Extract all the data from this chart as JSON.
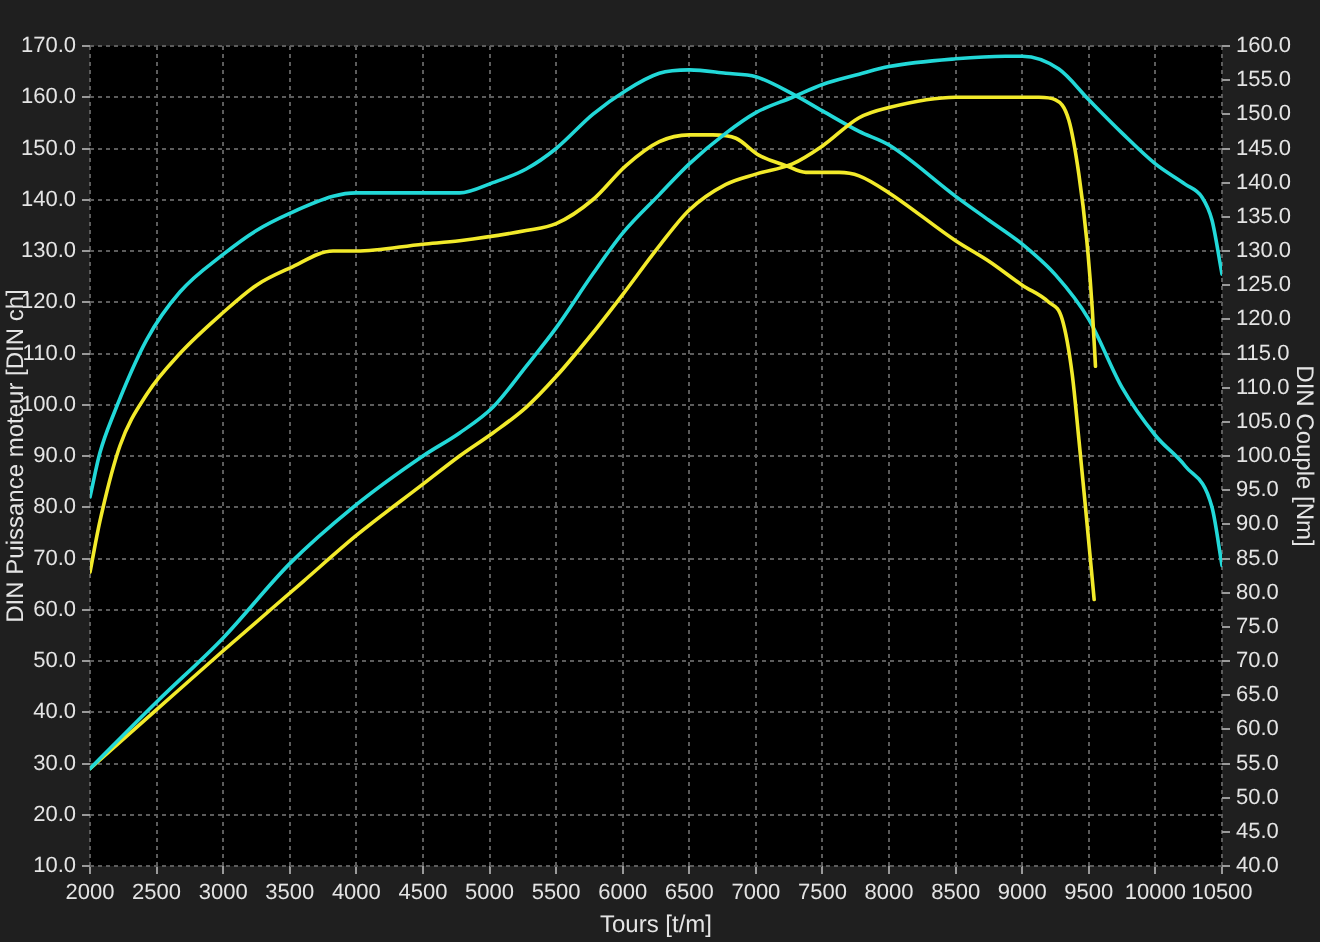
{
  "chart_data": {
    "type": "line",
    "xlabel": "Tours [t/m]",
    "ylabel": "DIN Puissance moteur [DIN ch]",
    "y2label": "DIN Couple [Nm]",
    "xlim": [
      2000,
      10500
    ],
    "xticks": [
      2000,
      2500,
      3000,
      3500,
      4000,
      4500,
      5000,
      5500,
      6000,
      6500,
      7000,
      7500,
      8000,
      8500,
      9000,
      9500,
      10000,
      10500
    ],
    "ylim": [
      10,
      170
    ],
    "yticks": [
      {
        "value": 10,
        "label": "10.0"
      },
      {
        "value": 20,
        "label": "20.0"
      },
      {
        "value": 30,
        "label": "30.0"
      },
      {
        "value": 40,
        "label": "40.0"
      },
      {
        "value": 50,
        "label": "50.0"
      },
      {
        "value": 60,
        "label": "60.0"
      },
      {
        "value": 70,
        "label": "70.0"
      },
      {
        "value": 80,
        "label": "80.0"
      },
      {
        "value": 90,
        "label": "90.0"
      },
      {
        "value": 100,
        "label": "100.0"
      },
      {
        "value": 110,
        "label": "110.0"
      },
      {
        "value": 120,
        "label": "120.0"
      },
      {
        "value": 130,
        "label": "130.0"
      },
      {
        "value": 140,
        "label": "140.0"
      },
      {
        "value": 150,
        "label": "150.0"
      },
      {
        "value": 160,
        "label": "160.0"
      },
      {
        "value": 170,
        "label": "170.0"
      }
    ],
    "y2lim": [
      40,
      160
    ],
    "y2ticks": [
      {
        "value": 40,
        "label": "40.0"
      },
      {
        "value": 45,
        "label": "45.0"
      },
      {
        "value": 50,
        "label": "50.0"
      },
      {
        "value": 55,
        "label": "55.0"
      },
      {
        "value": 60,
        "label": "60.0"
      },
      {
        "value": 65,
        "label": "65.0"
      },
      {
        "value": 70,
        "label": "70.0"
      },
      {
        "value": 75,
        "label": "75.0"
      },
      {
        "value": 80,
        "label": "80.0"
      },
      {
        "value": 85,
        "label": "85.0"
      },
      {
        "value": 90,
        "label": "90.0"
      },
      {
        "value": 95,
        "label": "95.0"
      },
      {
        "value": 100,
        "label": "100.0"
      },
      {
        "value": 105,
        "label": "105.0"
      },
      {
        "value": 110,
        "label": "110.0"
      },
      {
        "value": 115,
        "label": "115.0"
      },
      {
        "value": 120,
        "label": "120.0"
      },
      {
        "value": 125,
        "label": "125.0"
      },
      {
        "value": 130,
        "label": "130.0"
      },
      {
        "value": 135,
        "label": "135.0"
      },
      {
        "value": 140,
        "label": "140.0"
      },
      {
        "value": 145,
        "label": "145.0"
      },
      {
        "value": 150,
        "label": "150.0"
      },
      {
        "value": 155,
        "label": "155.0"
      },
      {
        "value": 160,
        "label": "160.0"
      }
    ],
    "grid": true,
    "marker": "none",
    "line_style": "solid",
    "series": [
      {
        "color": "#22d8d8",
        "x": [
          2000,
          2500,
          3000,
          3500,
          4000,
          4500,
          4775,
          5025,
          5275,
          5500,
          5775,
          6000,
          6275,
          6500,
          6775,
          7000,
          7275,
          7500,
          7775,
          8000,
          8500,
          8875,
          9000,
          9275,
          9500,
          9750,
          10000,
          10225,
          10350,
          10425,
          10500
        ],
        "values": [
          29,
          42,
          54.5,
          69,
          80.5,
          90,
          94.5,
          99.5,
          107.5,
          115,
          125.5,
          133.5,
          141,
          147,
          153,
          157,
          160,
          162.5,
          164.5,
          166,
          167.5,
          168,
          168,
          165.5,
          159.5,
          153,
          147,
          143,
          140.5,
          136,
          125.5
        ]
      },
      {
        "color": "#f2ea2a",
        "x": [
          2000,
          2500,
          3000,
          3600,
          4000,
          4500,
          4775,
          5025,
          5275,
          5500,
          5775,
          6000,
          6275,
          6500,
          6775,
          7000,
          7275,
          7500,
          7775,
          8000,
          8500,
          9125,
          9250,
          9350,
          9425,
          9485,
          9525,
          9550
        ],
        "values": [
          29,
          40.5,
          52,
          65.5,
          74.5,
          84.5,
          90,
          94.5,
          99.5,
          105.5,
          114,
          121.5,
          131,
          138,
          143,
          145,
          147,
          150.5,
          156,
          158,
          160,
          160,
          159.5,
          155.5,
          145,
          132,
          119,
          107.5
        ]
      },
      {
        "color": "#22d8d8",
        "axis": "y2",
        "x": [
          2000,
          2075,
          2175,
          2425,
          2675,
          3000,
          3250,
          3500,
          3825,
          4000,
          4500,
          4775,
          5025,
          5275,
          5500,
          5775,
          6025,
          6275,
          6500,
          6775,
          7000,
          7275,
          7500,
          7775,
          8000,
          8500,
          8750,
          9000,
          9250,
          9500,
          9750,
          10000,
          10225,
          10425,
          10500
        ],
        "values": [
          94,
          100.5,
          106,
          117,
          124,
          129.5,
          133,
          135.5,
          138,
          138.5,
          138.5,
          138.5,
          140,
          142,
          145,
          150,
          153.5,
          156,
          156.5,
          156,
          155.5,
          153,
          150.5,
          147.5,
          145.5,
          138,
          134.5,
          131,
          126.5,
          120,
          110,
          103,
          98.5,
          92.5,
          84
        ]
      },
      {
        "color": "#f2ea2a",
        "axis": "y2",
        "x": [
          2000,
          2075,
          2225,
          2425,
          2675,
          3000,
          3250,
          3500,
          3825,
          4000,
          4500,
          4775,
          5275,
          5500,
          5775,
          6025,
          6275,
          6500,
          6675,
          6850,
          7025,
          7225,
          7375,
          7625,
          7775,
          8000,
          8500,
          8750,
          9000,
          9200,
          9300,
          9375,
          9425,
          9475,
          9540
        ],
        "values": [
          83,
          90.5,
          101.5,
          109,
          115,
          121,
          125,
          127.5,
          130,
          130,
          131,
          131.5,
          133,
          134,
          137.5,
          142.5,
          146,
          147,
          147,
          146.5,
          144,
          142.5,
          141.5,
          141.5,
          141,
          138.5,
          131.5,
          128.5,
          125,
          122.5,
          120,
          112,
          102.5,
          92.5,
          79
        ]
      }
    ]
  }
}
